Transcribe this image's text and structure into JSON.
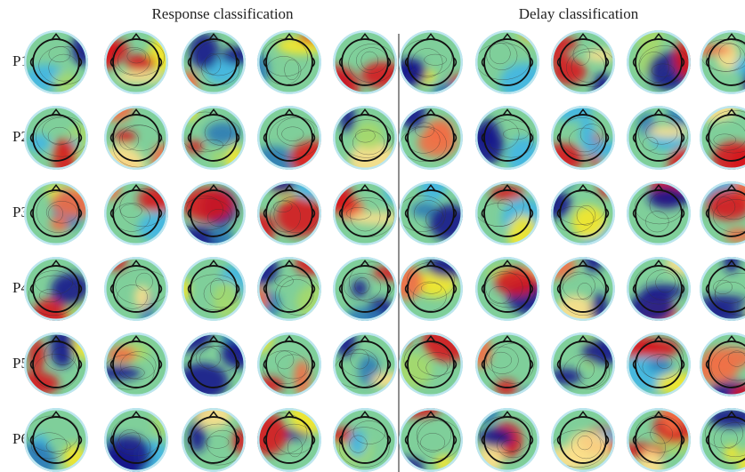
{
  "headers": {
    "response": "Response classification",
    "delay": "Delay classification"
  },
  "row_labels": [
    "P1",
    "P2",
    "P3",
    "P4",
    "P5",
    "P6"
  ]
}
